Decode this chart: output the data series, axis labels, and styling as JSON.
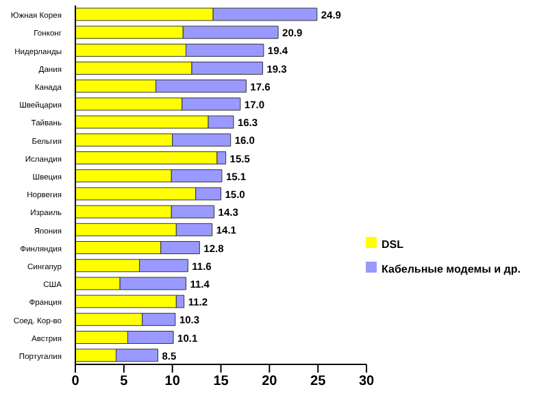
{
  "chart_data": {
    "type": "bar",
    "orientation": "horizontal",
    "stacked": true,
    "categories": [
      "Южная Корея",
      "Гонконг",
      "Нидерланды",
      "Дания",
      "Канада",
      "Швейцария",
      "Тайвань",
      "Бельгия",
      "Исландия",
      "Швеция",
      "Норвегия",
      "Израиль",
      "Япония",
      "Финляндия",
      "Сингапур",
      "США",
      "Франция",
      "Соед. Кор-во",
      "Австрия",
      "Португалия"
    ],
    "series": [
      {
        "name": "DSL",
        "color": "#ffff00",
        "values": [
          14.2,
          11.1,
          11.4,
          12.0,
          8.3,
          11.0,
          13.7,
          10.0,
          14.6,
          9.9,
          12.4,
          9.9,
          10.4,
          8.8,
          6.6,
          4.6,
          10.4,
          6.9,
          5.4,
          4.2
        ]
      },
      {
        "name": "Кабельные модемы и др.",
        "color": "#9999ff",
        "values": [
          10.7,
          9.8,
          8.0,
          7.3,
          9.3,
          6.0,
          2.6,
          6.0,
          0.9,
          5.2,
          2.6,
          4.4,
          3.7,
          4.0,
          5.0,
          6.8,
          0.8,
          3.4,
          4.7,
          4.3
        ]
      }
    ],
    "totals": [
      "24.9",
      "20.9",
      "19.4",
      "19.3",
      "17.6",
      "17.0",
      "16.3",
      "16.0",
      "15.5",
      "15.1",
      "15.0",
      "14.3",
      "14.1",
      "12.8",
      "11.6",
      "11.4",
      "11.2",
      "10.3",
      "10.1",
      "8.5"
    ],
    "xlim": [
      0,
      30
    ],
    "xticks": [
      0,
      5,
      10,
      15,
      20,
      25,
      30
    ],
    "legend": "right"
  }
}
